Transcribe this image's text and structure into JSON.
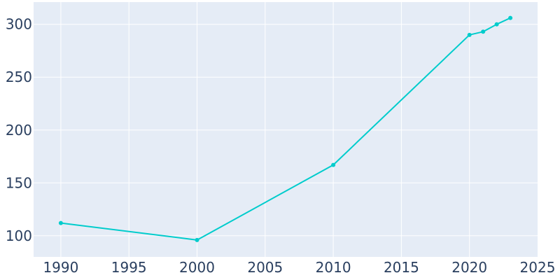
{
  "chart_data": {
    "type": "line",
    "x": [
      1990,
      2000,
      2010,
      2020,
      2021,
      2022,
      2023
    ],
    "series": [
      {
        "values": [
          112,
          96,
          167,
          290,
          293,
          300,
          306
        ]
      }
    ],
    "xlim": [
      1988,
      2025
    ],
    "ylim": [
      80,
      321
    ],
    "x_ticks": [
      1990,
      1995,
      2000,
      2005,
      2010,
      2015,
      2020,
      2025
    ],
    "y_ticks": [
      100,
      150,
      200,
      250,
      300
    ],
    "x_tick_labels": [
      "1990",
      "1995",
      "2000",
      "2005",
      "2010",
      "2015",
      "2020",
      "2025"
    ],
    "y_tick_labels": [
      "100",
      "150",
      "200",
      "250",
      "300"
    ],
    "grid": true,
    "legend": "none",
    "colors": {
      "plot_background": "#E5ECF6",
      "grid": "#ffffff",
      "line": "#00CCCC",
      "tick_text": "#2a3f5f"
    }
  }
}
